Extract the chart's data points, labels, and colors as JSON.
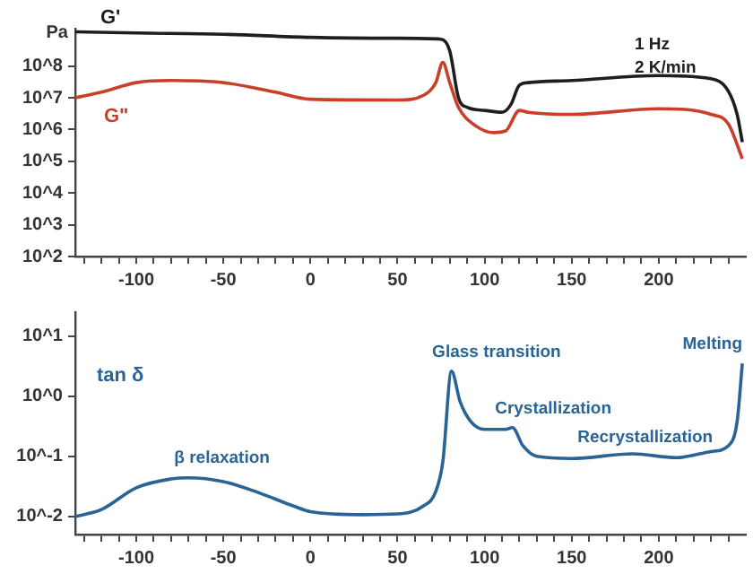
{
  "chart_data": [
    {
      "type": "line",
      "ylabel": "Pa",
      "log": "y",
      "grid": false,
      "legend": false,
      "xlim": [
        -135,
        250
      ],
      "ylim": [
        100,
        1500000000
      ],
      "xticks": [
        {
          "value": -130,
          "label": null
        },
        {
          "value": -120,
          "label": null
        },
        {
          "value": -110,
          "label": null
        },
        -100,
        {
          "value": -90,
          "label": null
        },
        {
          "value": -80,
          "label": null
        },
        {
          "value": -70,
          "label": null
        },
        {
          "value": -60,
          "label": null
        },
        -50,
        {
          "value": -40,
          "label": null
        },
        {
          "value": -30,
          "label": null
        },
        {
          "value": -20,
          "label": null
        },
        {
          "value": -10,
          "label": null
        },
        0,
        {
          "value": 10,
          "label": null
        },
        {
          "value": 20,
          "label": null
        },
        {
          "value": 30,
          "label": null
        },
        {
          "value": 40,
          "label": null
        },
        50,
        {
          "value": 60,
          "label": null
        },
        {
          "value": 70,
          "label": null
        },
        {
          "value": 80,
          "label": null
        },
        {
          "value": 90,
          "label": null
        },
        100,
        {
          "value": 110,
          "label": null
        },
        {
          "value": 120,
          "label": null
        },
        {
          "value": 130,
          "label": null
        },
        {
          "value": 140,
          "label": null
        },
        150,
        {
          "value": 160,
          "label": null
        },
        {
          "value": 170,
          "label": null
        },
        {
          "value": 180,
          "label": null
        },
        {
          "value": 190,
          "label": null
        },
        200,
        {
          "value": 210,
          "label": null
        },
        {
          "value": 220,
          "label": null
        },
        {
          "value": 230,
          "label": null
        },
        {
          "value": 240,
          "label": null
        }
      ],
      "yticks": [
        {
          "value": 100,
          "label": "10^2"
        },
        {
          "value": 1000,
          "label": "10^3"
        },
        {
          "value": 10000,
          "label": "10^4"
        },
        {
          "value": 100000,
          "label": "10^5"
        },
        {
          "value": 1000000,
          "label": "10^6"
        },
        {
          "value": 10000000,
          "label": "10^7"
        },
        {
          "value": 100000000,
          "label": "10^8"
        }
      ],
      "annotations": [
        "1 Hz",
        "2 K/min"
      ],
      "series": [
        {
          "name": "G'",
          "color": "#1e1e1e",
          "x": [
            -135,
            -100,
            -50,
            0,
            50,
            75,
            80,
            85,
            90,
            100,
            110,
            115,
            120,
            125,
            150,
            200,
            230,
            240,
            245,
            248
          ],
          "values": [
            1200000000,
            1100000000,
            1000000000,
            800000000,
            750000000,
            700000000,
            300000000,
            10000000,
            5000000,
            4000000,
            3500000,
            6000000,
            25000000,
            30000000,
            35000000,
            50000000,
            40000000,
            16000000,
            3000000,
            400000
          ]
        },
        {
          "name": "G\"",
          "color": "#c8402a",
          "x": [
            -135,
            -120,
            -100,
            -80,
            -50,
            -20,
            0,
            50,
            65,
            72,
            76,
            80,
            85,
            95,
            105,
            112,
            120,
            125,
            150,
            200,
            230,
            240,
            248
          ],
          "values": [
            10000000,
            15000000,
            30000000,
            35000000,
            30000000,
            15000000,
            9000000,
            8500000,
            12000000,
            30000000,
            130000000,
            30000000,
            5000000,
            1300000,
            800000,
            900000,
            4000000,
            3500000,
            3000000,
            4500000,
            3000000,
            1500000,
            120000
          ]
        }
      ]
    },
    {
      "type": "line",
      "ylabel": "tan δ",
      "log": "y",
      "grid": false,
      "legend": false,
      "xlim": [
        -135,
        250
      ],
      "ylim": [
        0.005,
        25
      ],
      "xticks": [
        {
          "value": -130,
          "label": null
        },
        {
          "value": -120,
          "label": null
        },
        {
          "value": -110,
          "label": null
        },
        -100,
        {
          "value": -90,
          "label": null
        },
        {
          "value": -80,
          "label": null
        },
        {
          "value": -70,
          "label": null
        },
        {
          "value": -60,
          "label": null
        },
        -50,
        {
          "value": -40,
          "label": null
        },
        {
          "value": -30,
          "label": null
        },
        {
          "value": -20,
          "label": null
        },
        {
          "value": -10,
          "label": null
        },
        0,
        {
          "value": 10,
          "label": null
        },
        {
          "value": 20,
          "label": null
        },
        {
          "value": 30,
          "label": null
        },
        {
          "value": 40,
          "label": null
        },
        50,
        {
          "value": 60,
          "label": null
        },
        {
          "value": 70,
          "label": null
        },
        {
          "value": 80,
          "label": null
        },
        {
          "value": 90,
          "label": null
        },
        100,
        {
          "value": 110,
          "label": null
        },
        {
          "value": 120,
          "label": null
        },
        {
          "value": 130,
          "label": null
        },
        {
          "value": 140,
          "label": null
        },
        150,
        {
          "value": 160,
          "label": null
        },
        {
          "value": 170,
          "label": null
        },
        {
          "value": 180,
          "label": null
        },
        {
          "value": 190,
          "label": null
        },
        200,
        {
          "value": 210,
          "label": null
        },
        {
          "value": 220,
          "label": null
        },
        {
          "value": 230,
          "label": null
        },
        {
          "value": 240,
          "label": null
        }
      ],
      "yticks": [
        {
          "value": 0.01,
          "label": "10^-2"
        },
        {
          "value": 0.1,
          "label": "10^-1"
        },
        {
          "value": 1,
          "label": "10^0"
        },
        {
          "value": 10,
          "label": "10^1"
        }
      ],
      "annotations": [
        {
          "text": "β relaxation",
          "x": -70,
          "y": 0.044
        },
        {
          "text": "Glass transition",
          "x": 81,
          "y": 2.6
        },
        {
          "text": "Crystallization",
          "x": 116,
          "y": 0.3
        },
        {
          "text": "Recrystallization",
          "x": 165,
          "y": 0.1
        },
        {
          "text": "Melting",
          "x": 248,
          "y": 3.5
        }
      ],
      "series": [
        {
          "color": "#2a6496",
          "x": [
            -135,
            -120,
            -100,
            -80,
            -70,
            -50,
            -30,
            -10,
            0,
            30,
            50,
            65,
            72,
            76,
            81,
            86,
            92,
            100,
            112,
            116,
            122,
            130,
            150,
            185,
            210,
            230,
            240,
            245,
            248
          ],
          "values": [
            0.01,
            0.013,
            0.03,
            0.042,
            0.044,
            0.038,
            0.025,
            0.015,
            0.012,
            0.0107,
            0.011,
            0.015,
            0.026,
            0.08,
            2.6,
            0.8,
            0.38,
            0.28,
            0.28,
            0.3,
            0.15,
            0.1,
            0.092,
            0.11,
            0.095,
            0.12,
            0.15,
            0.38,
            3.5
          ]
        }
      ]
    }
  ]
}
